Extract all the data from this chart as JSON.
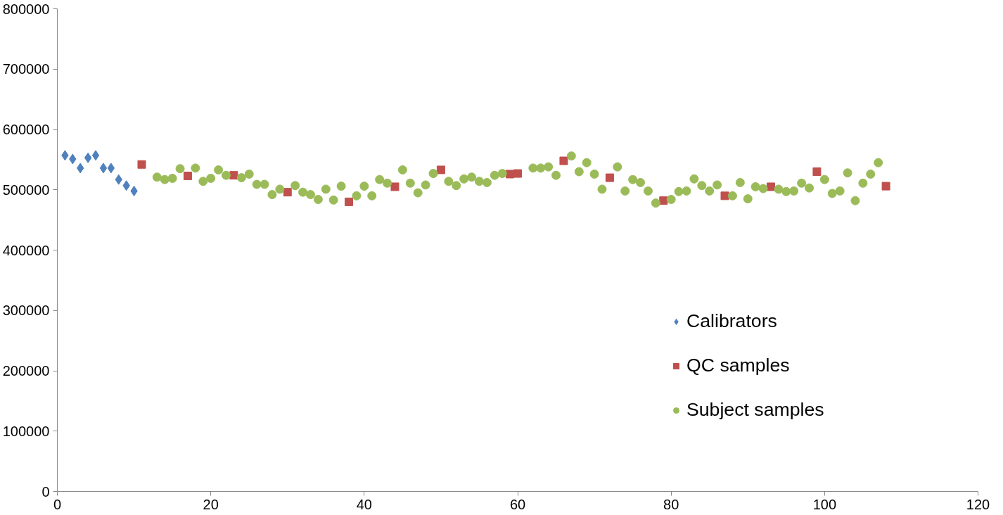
{
  "chart_data": {
    "type": "scatter",
    "xlim": [
      0,
      120
    ],
    "xticks": [
      0,
      20,
      40,
      60,
      80,
      100,
      120
    ],
    "ylim": [
      0,
      800000
    ],
    "yticks": [
      0,
      100000,
      200000,
      300000,
      400000,
      500000,
      600000,
      700000,
      800000
    ],
    "grid": false,
    "legend": "right",
    "series": [
      {
        "name": "Calibrators",
        "color": "#4f81bd",
        "marker": "diamond",
        "x": [
          1,
          2,
          3,
          4,
          5,
          6,
          7,
          8,
          9,
          10
        ],
        "values": [
          557000,
          551000,
          536000,
          553000,
          557000,
          536000,
          536000,
          517000,
          507000,
          498000
        ]
      },
      {
        "name": "QC samples",
        "color": "#c0504d",
        "marker": "square",
        "x": [
          11,
          17,
          23,
          30,
          38,
          44,
          50,
          59,
          60,
          66,
          72,
          79,
          87,
          93,
          99,
          108
        ],
        "values": [
          542000,
          523000,
          524000,
          496000,
          480000,
          505000,
          533000,
          526000,
          527000,
          548000,
          520000,
          482000,
          490000,
          505000,
          530000,
          506000
        ]
      },
      {
        "name": "Subject samples",
        "color": "#9bbb59",
        "marker": "circle",
        "x": [
          13,
          14,
          15,
          16,
          18,
          19,
          20,
          21,
          22,
          24,
          25,
          26,
          27,
          28,
          29,
          31,
          32,
          33,
          34,
          35,
          36,
          37,
          39,
          40,
          41,
          42,
          43,
          45,
          46,
          47,
          48,
          49,
          51,
          52,
          53,
          54,
          55,
          56,
          57,
          58,
          62,
          63,
          64,
          65,
          67,
          68,
          69,
          70,
          71,
          73,
          74,
          75,
          76,
          77,
          78,
          80,
          81,
          82,
          83,
          84,
          85,
          86,
          88,
          89,
          90,
          91,
          92,
          94,
          95,
          96,
          97,
          98,
          100,
          101,
          102,
          103,
          104,
          105,
          106,
          107
        ],
        "values": [
          521000,
          517000,
          519000,
          535000,
          536000,
          514000,
          519000,
          533000,
          524000,
          520000,
          526000,
          509000,
          509000,
          492000,
          501000,
          507000,
          496000,
          492000,
          484000,
          501000,
          483000,
          506000,
          490000,
          506000,
          490000,
          517000,
          511000,
          533000,
          511000,
          495000,
          508000,
          527000,
          514000,
          507000,
          518000,
          521000,
          514000,
          512000,
          524000,
          527000,
          536000,
          536000,
          538000,
          524000,
          556000,
          530000,
          545000,
          526000,
          501000,
          538000,
          498000,
          517000,
          512000,
          498000,
          478000,
          484000,
          497000,
          498000,
          518000,
          507000,
          498000,
          508000,
          490000,
          512000,
          485000,
          505000,
          502000,
          501000,
          497000,
          498000,
          511000,
          503000,
          517000,
          494000,
          498000,
          528000,
          482000,
          511000,
          526000,
          545000
        ]
      }
    ]
  }
}
